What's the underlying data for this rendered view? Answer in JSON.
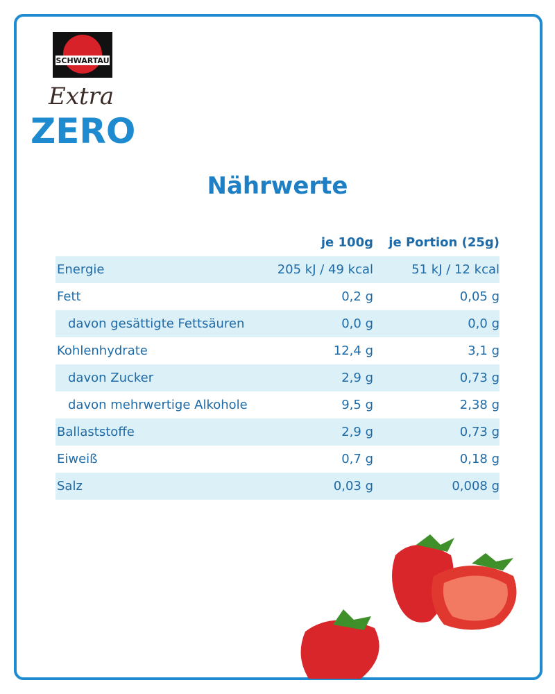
{
  "logo": {
    "brand": "SCHWARTAU",
    "line1": "Extra",
    "line2": "ZERO"
  },
  "title": "Nährwerte",
  "table": {
    "header": [
      "je 100g",
      "je Portion (25g)"
    ],
    "rows": [
      {
        "label": "Energie",
        "indent": false,
        "values": [
          "205 kJ / 49 kcal",
          "51 kJ / 12 kcal"
        ]
      },
      {
        "label": "Fett",
        "indent": false,
        "values": [
          "0,2 g",
          "0,05 g"
        ]
      },
      {
        "label": "davon gesättigte Fettsäuren",
        "indent": true,
        "values": [
          "0,0 g",
          "0,0 g"
        ]
      },
      {
        "label": "Kohlenhydrate",
        "indent": false,
        "values": [
          "12,4 g",
          "3,1 g"
        ]
      },
      {
        "label": "davon Zucker",
        "indent": true,
        "values": [
          "2,9 g",
          "0,73 g"
        ]
      },
      {
        "label": "davon mehrwertige Alkohole",
        "indent": true,
        "values": [
          "9,5 g",
          "2,38 g"
        ]
      },
      {
        "label": "Ballaststoffe",
        "indent": false,
        "values": [
          "2,9 g",
          "0,73 g"
        ]
      },
      {
        "label": "Eiweiß",
        "indent": false,
        "values": [
          "0,7 g",
          "0,18 g"
        ]
      },
      {
        "label": "Salz",
        "indent": false,
        "values": [
          "0,03 g",
          "0,008 g"
        ]
      }
    ]
  }
}
